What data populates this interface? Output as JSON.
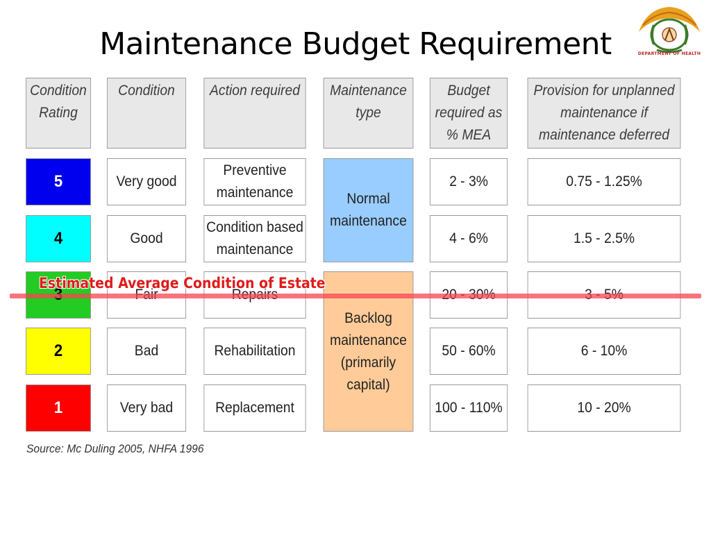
{
  "slide": {
    "title": "Maintenance Budget Requirement",
    "logo_caption": "DEPARTMENT OF HEALTH",
    "source": "Source: Mc Duling 2005, NHFA 1996",
    "overlay_label": "Estimated Average Condition of Estate"
  },
  "table": {
    "headers": [
      "Condition\nRating",
      "Condition",
      "Action required",
      "Maintenance\ntype",
      "Budget\nrequired as\n% MEA",
      "Provision for unplanned\nmaintenance if\nmaintenance deferred"
    ],
    "rows": [
      {
        "rating": "5",
        "color": "#0000ee",
        "condition": "Very good",
        "action": "Preventive\nmaintenance",
        "budget": "2 - 3%",
        "provision": "0.75 - 1.25%"
      },
      {
        "rating": "4",
        "color": "#00ffff",
        "condition": "Good",
        "action": "Condition based\nmaintenance",
        "budget": "4 - 6%",
        "provision": "1.5 - 2.5%"
      },
      {
        "rating": "3",
        "color": "#22cc22",
        "condition": "Fair",
        "action": "Repairs",
        "budget": "20 - 30%",
        "provision": "3 - 5%"
      },
      {
        "rating": "2",
        "color": "#ffff00",
        "condition": "Bad",
        "action": "Rehabilitation",
        "budget": "50 - 60%",
        "provision": "6 - 10%"
      },
      {
        "rating": "1",
        "color": "#ff0000",
        "condition": "Very bad",
        "action": "Replacement",
        "budget": "100 - 110%",
        "provision": "10 - 20%"
      }
    ],
    "maintenance_types": [
      {
        "label": "Normal\nmaintenance",
        "color": "#99ccff"
      },
      {
        "label": "Backlog\nmaintenance\n(primarily\ncapital)",
        "color": "#ffcc99"
      }
    ]
  }
}
